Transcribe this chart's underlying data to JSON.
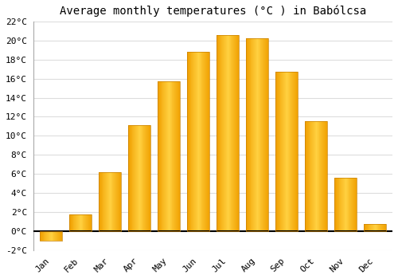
{
  "title": "Average monthly temperatures (°C ) in Babólcsa",
  "months": [
    "Jan",
    "Feb",
    "Mar",
    "Apr",
    "May",
    "Jun",
    "Jul",
    "Aug",
    "Sep",
    "Oct",
    "Nov",
    "Dec"
  ],
  "temperatures": [
    -1.0,
    1.8,
    6.2,
    11.1,
    15.7,
    18.8,
    20.6,
    20.2,
    16.7,
    11.5,
    5.6,
    0.8
  ],
  "bar_color_center": "#FFD040",
  "bar_color_edge": "#F0A000",
  "ylim": [
    -2,
    22
  ],
  "yticks": [
    -2,
    0,
    2,
    4,
    6,
    8,
    10,
    12,
    14,
    16,
    18,
    20,
    22
  ],
  "ytick_labels": [
    "-2°C",
    "0°C",
    "2°C",
    "4°C",
    "6°C",
    "8°C",
    "10°C",
    "12°C",
    "14°C",
    "16°C",
    "18°C",
    "20°C",
    "22°C"
  ],
  "background_color": "#ffffff",
  "grid_color": "#dddddd",
  "title_fontsize": 10,
  "tick_fontsize": 8,
  "zero_line_color": "#000000",
  "bar_width": 0.75
}
